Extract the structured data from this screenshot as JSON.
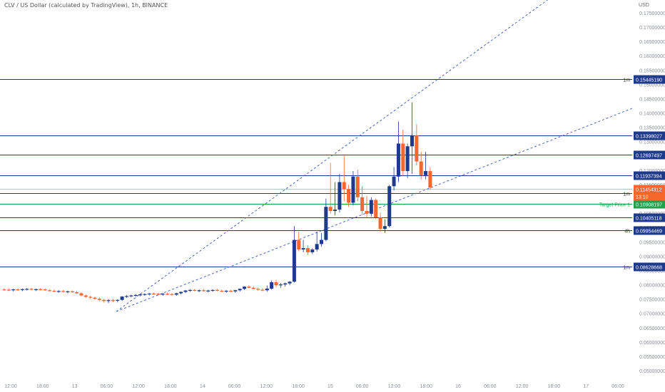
{
  "header": {
    "symbol_title": "CLV / US Dollar (calculated by TradingView), 1h, BINANCE",
    "currency": "USD"
  },
  "price_axis": {
    "labels": [
      "0.17500000",
      "0.17000000",
      "0.16500000",
      "0.16000000",
      "0.15500000",
      "0.15000000",
      "0.14500000",
      "0.14000000",
      "0.13500000",
      "0.13000000",
      "0.12500000",
      "0.12000000",
      "0.11500000",
      "0.11000000",
      "0.10500000",
      "0.10000000",
      "0.09500000",
      "0.09000000",
      "0.08500000",
      "0.08000000",
      "0.07500000",
      "0.07000000",
      "0.06500000",
      "0.06000000",
      "0.05500000",
      "0.05000000"
    ]
  },
  "time_axis": {
    "labels": [
      "12:00",
      "18:00",
      "13",
      "06:00",
      "12:00",
      "18:00",
      "14",
      "06:00",
      "12:00",
      "18:00",
      "15",
      "06:00",
      "12:00",
      "18:00",
      "16",
      "06:00",
      "12:00",
      "18:00",
      "17",
      "06:00"
    ]
  },
  "colors": {
    "bull": "#1e3a8a",
    "bear": "#f5672c",
    "level_line": "#1e3a8a",
    "target": "#22a04b",
    "channel": "#4a63b8",
    "grid_text": "#8a8f98"
  },
  "levels": [
    {
      "price": 0.1544519,
      "label": "0.15445190",
      "tag": "1m"
    },
    {
      "price": 0.13398027,
      "label": "0.13398027",
      "tag": ""
    },
    {
      "price": 0.12697497,
      "label": "0.12697497",
      "tag": ""
    },
    {
      "price": 0.11937394,
      "label": "0.11937394",
      "tag": ""
    },
    {
      "price": 0.11287819,
      "label": "0.11287819",
      "tag": "1m"
    },
    {
      "price": 0.10405118,
      "label": "0.10405118",
      "tag": ""
    },
    {
      "price": 0.09954469,
      "label": "0.09954469",
      "tag": "4h"
    },
    {
      "price": 0.08628668,
      "label": "0.08628668",
      "tag": "1m"
    }
  ],
  "target": {
    "price": 0.10908197,
    "label": "0.10908197",
    "tag": "Target Price 1"
  },
  "last_price": {
    "price": 0.11454312,
    "label": "0.11454312",
    "countdown": "13:10"
  },
  "chart_data": {
    "type": "candlestick",
    "title": "CLV / US Dollar (calculated by TradingView), 1h, BINANCE",
    "ylim": [
      0.0485,
      0.1785
    ],
    "xlim": [
      0,
      146
    ],
    "grid": false,
    "candles": [
      {
        "t": 0,
        "o": 0.078,
        "h": 0.0785,
        "l": 0.0776,
        "c": 0.0779
      },
      {
        "t": 1,
        "o": 0.0779,
        "h": 0.0784,
        "l": 0.0774,
        "c": 0.0777
      },
      {
        "t": 2,
        "o": 0.0777,
        "h": 0.0783,
        "l": 0.0773,
        "c": 0.078
      },
      {
        "t": 3,
        "o": 0.078,
        "h": 0.0784,
        "l": 0.0775,
        "c": 0.0778
      },
      {
        "t": 4,
        "o": 0.0778,
        "h": 0.0783,
        "l": 0.0774,
        "c": 0.0781
      },
      {
        "t": 5,
        "o": 0.0781,
        "h": 0.0785,
        "l": 0.0776,
        "c": 0.0782
      },
      {
        "t": 6,
        "o": 0.0782,
        "h": 0.0786,
        "l": 0.0777,
        "c": 0.0779
      },
      {
        "t": 7,
        "o": 0.0779,
        "h": 0.0783,
        "l": 0.0774,
        "c": 0.0781
      },
      {
        "t": 8,
        "o": 0.0781,
        "h": 0.0785,
        "l": 0.0776,
        "c": 0.078
      },
      {
        "t": 9,
        "o": 0.078,
        "h": 0.0784,
        "l": 0.0775,
        "c": 0.0777
      },
      {
        "t": 10,
        "o": 0.0777,
        "h": 0.0781,
        "l": 0.0772,
        "c": 0.0775
      },
      {
        "t": 11,
        "o": 0.0775,
        "h": 0.078,
        "l": 0.077,
        "c": 0.0773
      },
      {
        "t": 12,
        "o": 0.0773,
        "h": 0.0777,
        "l": 0.0768,
        "c": 0.0774
      },
      {
        "t": 13,
        "o": 0.0774,
        "h": 0.0778,
        "l": 0.0769,
        "c": 0.0771
      },
      {
        "t": 14,
        "o": 0.0771,
        "h": 0.0776,
        "l": 0.0766,
        "c": 0.0773
      },
      {
        "t": 15,
        "o": 0.0773,
        "h": 0.0777,
        "l": 0.0768,
        "c": 0.077
      },
      {
        "t": 16,
        "o": 0.077,
        "h": 0.0775,
        "l": 0.0763,
        "c": 0.0766
      },
      {
        "t": 17,
        "o": 0.0766,
        "h": 0.077,
        "l": 0.0756,
        "c": 0.0758
      },
      {
        "t": 18,
        "o": 0.0758,
        "h": 0.0762,
        "l": 0.075,
        "c": 0.0753
      },
      {
        "t": 19,
        "o": 0.0753,
        "h": 0.0757,
        "l": 0.0745,
        "c": 0.075
      },
      {
        "t": 20,
        "o": 0.075,
        "h": 0.0754,
        "l": 0.0742,
        "c": 0.0746
      },
      {
        "t": 21,
        "o": 0.0746,
        "h": 0.0751,
        "l": 0.0738,
        "c": 0.0742
      },
      {
        "t": 22,
        "o": 0.0742,
        "h": 0.0746,
        "l": 0.0732,
        "c": 0.0738
      },
      {
        "t": 23,
        "o": 0.0738,
        "h": 0.0745,
        "l": 0.073,
        "c": 0.0741
      },
      {
        "t": 24,
        "o": 0.0741,
        "h": 0.0746,
        "l": 0.0734,
        "c": 0.0739
      },
      {
        "t": 25,
        "o": 0.0739,
        "h": 0.0744,
        "l": 0.0733,
        "c": 0.0742
      },
      {
        "t": 26,
        "o": 0.0742,
        "h": 0.0756,
        "l": 0.0738,
        "c": 0.0754
      },
      {
        "t": 27,
        "o": 0.0754,
        "h": 0.0759,
        "l": 0.0749,
        "c": 0.0756
      },
      {
        "t": 28,
        "o": 0.0756,
        "h": 0.0761,
        "l": 0.0751,
        "c": 0.0758
      },
      {
        "t": 29,
        "o": 0.0758,
        "h": 0.0763,
        "l": 0.0753,
        "c": 0.076
      },
      {
        "t": 30,
        "o": 0.076,
        "h": 0.0765,
        "l": 0.0755,
        "c": 0.0762
      },
      {
        "t": 31,
        "o": 0.0762,
        "h": 0.0766,
        "l": 0.0757,
        "c": 0.0763
      },
      {
        "t": 32,
        "o": 0.0763,
        "h": 0.0767,
        "l": 0.0758,
        "c": 0.0765
      },
      {
        "t": 33,
        "o": 0.0765,
        "h": 0.0769,
        "l": 0.076,
        "c": 0.0764
      },
      {
        "t": 34,
        "o": 0.0764,
        "h": 0.0768,
        "l": 0.0759,
        "c": 0.0762
      },
      {
        "t": 35,
        "o": 0.0762,
        "h": 0.0767,
        "l": 0.0757,
        "c": 0.0764
      },
      {
        "t": 36,
        "o": 0.0764,
        "h": 0.0768,
        "l": 0.0759,
        "c": 0.0763
      },
      {
        "t": 37,
        "o": 0.0763,
        "h": 0.0767,
        "l": 0.0758,
        "c": 0.0761
      },
      {
        "t": 38,
        "o": 0.0761,
        "h": 0.0768,
        "l": 0.0757,
        "c": 0.0766
      },
      {
        "t": 39,
        "o": 0.0766,
        "h": 0.0773,
        "l": 0.0762,
        "c": 0.0771
      },
      {
        "t": 40,
        "o": 0.0771,
        "h": 0.0778,
        "l": 0.0767,
        "c": 0.0776
      },
      {
        "t": 41,
        "o": 0.0776,
        "h": 0.0781,
        "l": 0.0771,
        "c": 0.0778
      },
      {
        "t": 42,
        "o": 0.0778,
        "h": 0.0782,
        "l": 0.0773,
        "c": 0.0775
      },
      {
        "t": 43,
        "o": 0.0775,
        "h": 0.078,
        "l": 0.077,
        "c": 0.0777
      },
      {
        "t": 44,
        "o": 0.0777,
        "h": 0.0781,
        "l": 0.0772,
        "c": 0.0774
      },
      {
        "t": 45,
        "o": 0.0774,
        "h": 0.0779,
        "l": 0.0769,
        "c": 0.0776
      },
      {
        "t": 46,
        "o": 0.0776,
        "h": 0.078,
        "l": 0.0771,
        "c": 0.0778
      },
      {
        "t": 47,
        "o": 0.0778,
        "h": 0.0782,
        "l": 0.0773,
        "c": 0.0775
      },
      {
        "t": 48,
        "o": 0.0775,
        "h": 0.078,
        "l": 0.077,
        "c": 0.0773
      },
      {
        "t": 49,
        "o": 0.0773,
        "h": 0.0778,
        "l": 0.0768,
        "c": 0.0775
      },
      {
        "t": 50,
        "o": 0.0775,
        "h": 0.0779,
        "l": 0.077,
        "c": 0.0773
      },
      {
        "t": 51,
        "o": 0.0773,
        "h": 0.0779,
        "l": 0.0768,
        "c": 0.0777
      },
      {
        "t": 52,
        "o": 0.0777,
        "h": 0.0784,
        "l": 0.0772,
        "c": 0.0782
      },
      {
        "t": 53,
        "o": 0.0782,
        "h": 0.0792,
        "l": 0.0778,
        "c": 0.079
      },
      {
        "t": 54,
        "o": 0.079,
        "h": 0.0795,
        "l": 0.0783,
        "c": 0.0786
      },
      {
        "t": 55,
        "o": 0.0786,
        "h": 0.079,
        "l": 0.0779,
        "c": 0.0782
      },
      {
        "t": 56,
        "o": 0.0782,
        "h": 0.0787,
        "l": 0.0776,
        "c": 0.0779
      },
      {
        "t": 57,
        "o": 0.0779,
        "h": 0.0784,
        "l": 0.0773,
        "c": 0.0777
      },
      {
        "t": 58,
        "o": 0.0777,
        "h": 0.0794,
        "l": 0.0772,
        "c": 0.0783
      },
      {
        "t": 59,
        "o": 0.0783,
        "h": 0.0813,
        "l": 0.0779,
        "c": 0.0806
      },
      {
        "t": 60,
        "o": 0.0806,
        "h": 0.0815,
        "l": 0.0788,
        "c": 0.0795
      },
      {
        "t": 61,
        "o": 0.0795,
        "h": 0.0803,
        "l": 0.0786,
        "c": 0.0798
      },
      {
        "t": 62,
        "o": 0.0798,
        "h": 0.0805,
        "l": 0.079,
        "c": 0.0802
      },
      {
        "t": 63,
        "o": 0.0802,
        "h": 0.081,
        "l": 0.0795,
        "c": 0.0808
      },
      {
        "t": 64,
        "o": 0.0808,
        "h": 0.101,
        "l": 0.0805,
        "c": 0.096
      },
      {
        "t": 65,
        "o": 0.096,
        "h": 0.099,
        "l": 0.0918,
        "c": 0.0925
      },
      {
        "t": 66,
        "o": 0.0925,
        "h": 0.096,
        "l": 0.0915,
        "c": 0.093
      },
      {
        "t": 67,
        "o": 0.093,
        "h": 0.094,
        "l": 0.0905,
        "c": 0.0915
      },
      {
        "t": 68,
        "o": 0.0915,
        "h": 0.093,
        "l": 0.0908,
        "c": 0.0925
      },
      {
        "t": 69,
        "o": 0.0925,
        "h": 0.099,
        "l": 0.0918,
        "c": 0.0945
      },
      {
        "t": 70,
        "o": 0.0945,
        "h": 0.0985,
        "l": 0.0935,
        "c": 0.096
      },
      {
        "t": 71,
        "o": 0.096,
        "h": 0.111,
        "l": 0.0955,
        "c": 0.108
      },
      {
        "t": 72,
        "o": 0.108,
        "h": 0.124,
        "l": 0.1055,
        "c": 0.1065
      },
      {
        "t": 73,
        "o": 0.1065,
        "h": 0.117,
        "l": 0.105,
        "c": 0.107
      },
      {
        "t": 74,
        "o": 0.107,
        "h": 0.12,
        "l": 0.106,
        "c": 0.117
      },
      {
        "t": 75,
        "o": 0.117,
        "h": 0.1265,
        "l": 0.11,
        "c": 0.1145
      },
      {
        "t": 76,
        "o": 0.1145,
        "h": 0.116,
        "l": 0.108,
        "c": 0.1095
      },
      {
        "t": 77,
        "o": 0.1095,
        "h": 0.121,
        "l": 0.1085,
        "c": 0.119
      },
      {
        "t": 78,
        "o": 0.119,
        "h": 0.1215,
        "l": 0.11,
        "c": 0.1115
      },
      {
        "t": 79,
        "o": 0.1115,
        "h": 0.1155,
        "l": 0.105,
        "c": 0.1065
      },
      {
        "t": 80,
        "o": 0.1065,
        "h": 0.112,
        "l": 0.104,
        "c": 0.1055
      },
      {
        "t": 81,
        "o": 0.1055,
        "h": 0.1115,
        "l": 0.1045,
        "c": 0.1105
      },
      {
        "t": 82,
        "o": 0.1105,
        "h": 0.111,
        "l": 0.1035,
        "c": 0.1042
      },
      {
        "t": 83,
        "o": 0.1042,
        "h": 0.106,
        "l": 0.099,
        "c": 0.1
      },
      {
        "t": 84,
        "o": 0.1,
        "h": 0.1035,
        "l": 0.0985,
        "c": 0.101
      },
      {
        "t": 85,
        "o": 0.101,
        "h": 0.116,
        "l": 0.1005,
        "c": 0.1155
      },
      {
        "t": 86,
        "o": 0.1155,
        "h": 0.1225,
        "l": 0.114,
        "c": 0.119
      },
      {
        "t": 87,
        "o": 0.119,
        "h": 0.139,
        "l": 0.117,
        "c": 0.131
      },
      {
        "t": 88,
        "o": 0.131,
        "h": 0.136,
        "l": 0.1195,
        "c": 0.121
      },
      {
        "t": 89,
        "o": 0.121,
        "h": 0.131,
        "l": 0.1185,
        "c": 0.13
      },
      {
        "t": 90,
        "o": 0.13,
        "h": 0.146,
        "l": 0.12,
        "c": 0.134
      },
      {
        "t": 91,
        "o": 0.134,
        "h": 0.138,
        "l": 0.123,
        "c": 0.1245
      },
      {
        "t": 92,
        "o": 0.1245,
        "h": 0.128,
        "l": 0.118,
        "c": 0.1195
      },
      {
        "t": 93,
        "o": 0.1195,
        "h": 0.128,
        "l": 0.118,
        "c": 0.121
      },
      {
        "t": 94,
        "o": 0.121,
        "h": 0.1225,
        "l": 0.1142,
        "c": 0.115
      }
    ]
  }
}
